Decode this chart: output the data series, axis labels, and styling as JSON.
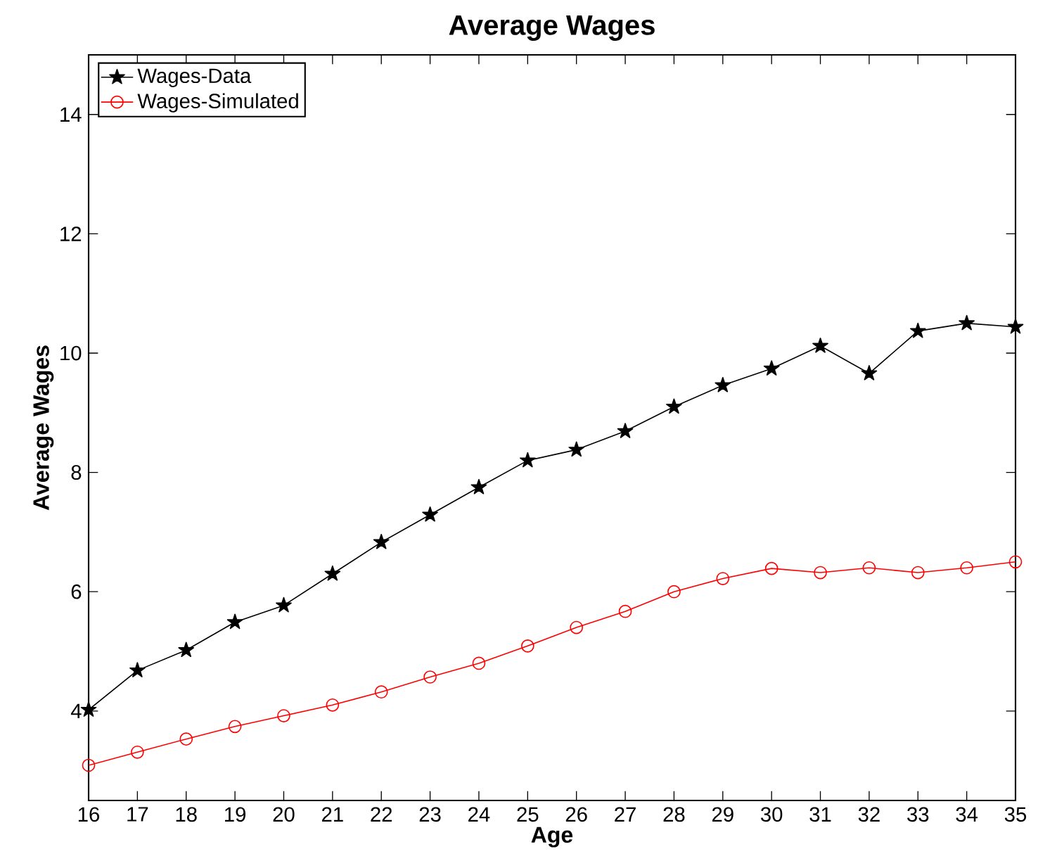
{
  "chart_data": {
    "type": "line",
    "title": "Average Wages",
    "xlabel": "Age",
    "ylabel": "Average Wages",
    "x": [
      16,
      17,
      18,
      19,
      20,
      21,
      22,
      23,
      24,
      25,
      26,
      27,
      28,
      29,
      30,
      31,
      32,
      33,
      34,
      35
    ],
    "series": [
      {
        "name": "Wages-Data",
        "color": "#000000",
        "marker": "star",
        "values": [
          4.02,
          4.68,
          5.02,
          5.49,
          5.77,
          6.3,
          6.83,
          7.29,
          7.75,
          8.2,
          8.38,
          8.69,
          9.1,
          9.46,
          9.74,
          10.12,
          9.66,
          10.37,
          10.5,
          10.44
        ]
      },
      {
        "name": "Wages-Simulated",
        "color": "#ff0000",
        "marker": "circle",
        "values": [
          3.09,
          3.31,
          3.53,
          3.74,
          3.92,
          4.1,
          4.32,
          4.57,
          4.8,
          5.09,
          5.4,
          5.67,
          6.0,
          6.22,
          6.39,
          6.32,
          6.4,
          6.32,
          6.4,
          6.5
        ]
      }
    ],
    "xlim": [
      16,
      35
    ],
    "ylim": [
      2.5,
      15
    ],
    "xticks": [
      16,
      17,
      18,
      19,
      20,
      21,
      22,
      23,
      24,
      25,
      26,
      27,
      28,
      29,
      30,
      31,
      32,
      33,
      34,
      35
    ],
    "yticks": [
      4,
      6,
      8,
      10,
      12,
      14
    ],
    "legend": "top left",
    "line_style": "solid"
  }
}
